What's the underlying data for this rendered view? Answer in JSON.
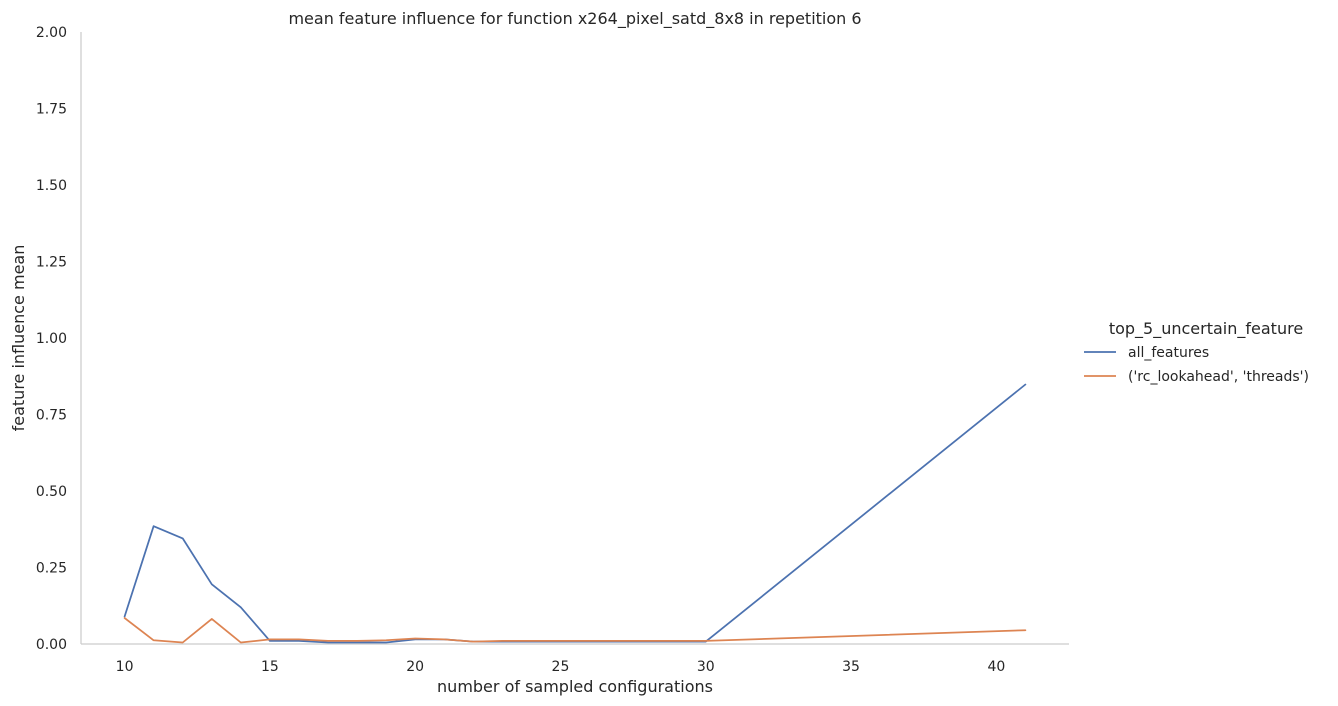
{
  "chart_data": {
    "type": "line",
    "title": "mean feature influence for function x264_pixel_satd_8x8 in repetition 6",
    "xlabel": "number of sampled configurations",
    "ylabel": "feature influence mean",
    "xlim": [
      8.5,
      42.5
    ],
    "ylim": [
      0,
      2.0
    ],
    "xticks": [
      10,
      15,
      20,
      25,
      30,
      35,
      40
    ],
    "yticks": [
      0.0,
      0.25,
      0.5,
      0.75,
      1.0,
      1.25,
      1.5,
      1.75,
      2.0
    ],
    "ytick_labels": [
      "0.00",
      "0.25",
      "0.50",
      "0.75",
      "1.00",
      "1.25",
      "1.50",
      "1.75",
      "2.00"
    ],
    "grid": false,
    "legend": {
      "title": "top_5_uncertain_feature",
      "placement": "right"
    },
    "series": [
      {
        "name": "all_features",
        "color": "#4c72b0",
        "x": [
          10,
          11,
          12,
          13,
          14,
          15,
          16,
          17,
          18,
          19,
          20,
          21,
          22,
          23,
          24,
          25,
          26,
          27,
          28,
          29,
          30,
          41
        ],
        "y": [
          0.09,
          0.385,
          0.345,
          0.195,
          0.12,
          0.01,
          0.01,
          0.005,
          0.005,
          0.005,
          0.015,
          0.015,
          0.008,
          0.008,
          0.008,
          0.008,
          0.008,
          0.008,
          0.008,
          0.008,
          0.008,
          0.848
        ]
      },
      {
        "name": "('rc_lookahead', 'threads')",
        "color": "#dd8452",
        "x": [
          10,
          11,
          12,
          13,
          14,
          15,
          16,
          17,
          18,
          19,
          20,
          21,
          22,
          23,
          24,
          25,
          26,
          27,
          28,
          29,
          30,
          41
        ],
        "y": [
          0.085,
          0.012,
          0.005,
          0.082,
          0.005,
          0.015,
          0.015,
          0.01,
          0.01,
          0.012,
          0.018,
          0.015,
          0.008,
          0.01,
          0.01,
          0.01,
          0.01,
          0.01,
          0.01,
          0.01,
          0.01,
          0.045
        ]
      }
    ]
  }
}
